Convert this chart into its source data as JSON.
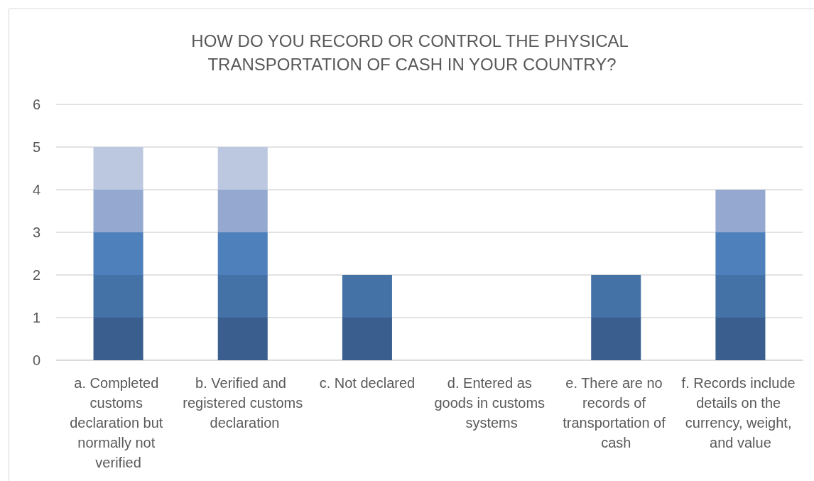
{
  "chart_data": {
    "type": "bar",
    "title": "HOW DO YOU RECORD OR CONTROL THE PHYSICAL TRANSPORTATION OF CASH IN YOUR COUNTRY?",
    "categories": [
      "a. Completed customs declaration but normally not verified",
      "b. Verified and registered customs declaration",
      "c. Not declared",
      "d. Entered as goods in customs systems",
      "e. There are no records of transportation of cash",
      "f. Records include details on the currency, weight, and value"
    ],
    "stacked": true,
    "series": [
      {
        "color": "#3a5f8f",
        "values": [
          1,
          1,
          1,
          0,
          1,
          1
        ]
      },
      {
        "color": "#4472a7",
        "values": [
          1,
          1,
          1,
          null,
          1,
          1
        ]
      },
      {
        "color": "#4e80bb",
        "values": [
          1,
          1,
          null,
          null,
          null,
          1
        ]
      },
      {
        "color": "#95a9d0",
        "values": [
          1,
          1,
          null,
          null,
          null,
          1
        ]
      },
      {
        "color": "#bbc8e0",
        "values": [
          1,
          1,
          null,
          null,
          null,
          null
        ]
      }
    ],
    "ylim": [
      0,
      6
    ],
    "yticks": [
      0,
      1,
      2,
      3,
      4,
      5,
      6
    ],
    "grid": "y"
  }
}
